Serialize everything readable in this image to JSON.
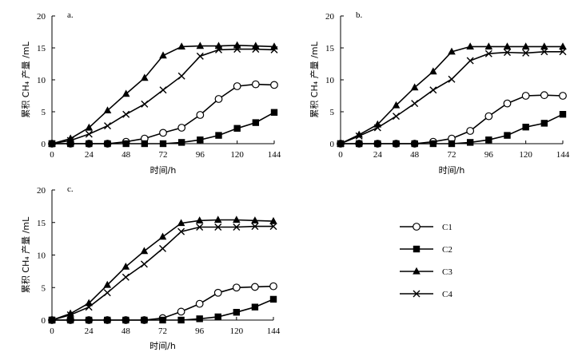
{
  "chart_data": [
    {
      "type": "line",
      "panel_label": "a.",
      "xlabel": "时间/h",
      "ylabel": "累积 CH₄ 产量 /mL",
      "xlim": [
        0,
        144
      ],
      "ylim": [
        0,
        20
      ],
      "xticks": [
        "0",
        "24",
        "48",
        "72",
        "96",
        "120",
        "144"
      ],
      "yticks": [
        "0",
        "5",
        "10",
        "15",
        "20"
      ],
      "x": [
        0,
        12,
        24,
        36,
        48,
        60,
        72,
        84,
        96,
        108,
        120,
        132,
        144
      ],
      "series": [
        {
          "name": "C1",
          "values": [
            0,
            0,
            0,
            0,
            0.3,
            0.8,
            1.7,
            2.5,
            4.5,
            7.0,
            9.0,
            9.3,
            9.2
          ]
        },
        {
          "name": "C2",
          "values": [
            0,
            0,
            0,
            0,
            0,
            0,
            0,
            0.2,
            0.6,
            1.3,
            2.4,
            3.3,
            4.9
          ]
        },
        {
          "name": "C3",
          "values": [
            0,
            0.8,
            2.5,
            5.2,
            7.8,
            10.3,
            13.8,
            15.2,
            15.3,
            15.3,
            15.4,
            15.3,
            15.2
          ]
        },
        {
          "name": "C4",
          "values": [
            0,
            0.5,
            1.5,
            2.8,
            4.6,
            6.2,
            8.4,
            10.6,
            13.7,
            14.7,
            14.8,
            14.8,
            14.7
          ]
        }
      ]
    },
    {
      "type": "line",
      "panel_label": "b.",
      "xlabel": "时间/h",
      "ylabel": "累积 CH₄ 产量 /mL",
      "xlim": [
        0,
        144
      ],
      "ylim": [
        0,
        20
      ],
      "xticks": [
        "0",
        "24",
        "48",
        "72",
        "96",
        "120",
        "144"
      ],
      "yticks": [
        "0",
        "5",
        "10",
        "15",
        "20"
      ],
      "x": [
        0,
        12,
        24,
        36,
        48,
        60,
        72,
        84,
        96,
        108,
        120,
        132,
        144
      ],
      "series": [
        {
          "name": "C1",
          "values": [
            0,
            0,
            0,
            0,
            0,
            0.3,
            0.8,
            2.0,
            4.3,
            6.3,
            7.5,
            7.6,
            7.5
          ]
        },
        {
          "name": "C2",
          "values": [
            0,
            0,
            0,
            0,
            0,
            0,
            0,
            0.2,
            0.6,
            1.3,
            2.6,
            3.2,
            4.6
          ]
        },
        {
          "name": "C3",
          "values": [
            0,
            1.4,
            3.0,
            6.0,
            8.8,
            11.3,
            14.4,
            15.2,
            15.2,
            15.2,
            15.2,
            15.2,
            15.2
          ]
        },
        {
          "name": "C4",
          "values": [
            0,
            1.2,
            2.5,
            4.3,
            6.3,
            8.4,
            10.1,
            13.0,
            14.1,
            14.3,
            14.2,
            14.4,
            14.4
          ]
        }
      ]
    },
    {
      "type": "line",
      "panel_label": "c.",
      "xlabel": "时间/h",
      "ylabel": "累积 CH₄ 产量 /mL",
      "xlim": [
        0,
        144
      ],
      "ylim": [
        0,
        20
      ],
      "xticks": [
        "0",
        "24",
        "48",
        "72",
        "96",
        "120",
        "144"
      ],
      "yticks": [
        "0",
        "5",
        "10",
        "15",
        "20"
      ],
      "x": [
        0,
        12,
        24,
        36,
        48,
        60,
        72,
        84,
        96,
        108,
        120,
        132,
        144
      ],
      "series": [
        {
          "name": "C1",
          "values": [
            0,
            0,
            0,
            0,
            0,
            0,
            0.3,
            1.3,
            2.5,
            4.2,
            5.0,
            5.1,
            5.2
          ]
        },
        {
          "name": "C2",
          "values": [
            0,
            0,
            0,
            0,
            0,
            0,
            0,
            0,
            0.2,
            0.5,
            1.2,
            2.0,
            3.2
          ]
        },
        {
          "name": "C3",
          "values": [
            0,
            1.0,
            2.6,
            5.4,
            8.2,
            10.6,
            12.8,
            14.9,
            15.3,
            15.4,
            15.4,
            15.3,
            15.2
          ]
        },
        {
          "name": "C4",
          "values": [
            0,
            0.8,
            2.0,
            4.2,
            6.6,
            8.6,
            11.0,
            13.6,
            14.3,
            14.3,
            14.3,
            14.4,
            14.4
          ]
        }
      ]
    }
  ],
  "legend": {
    "entries": [
      {
        "name": "C1",
        "marker": "open-circle"
      },
      {
        "name": "C2",
        "marker": "filled-square"
      },
      {
        "name": "C3",
        "marker": "filled-triangle"
      },
      {
        "name": "C4",
        "marker": "cross"
      }
    ]
  }
}
